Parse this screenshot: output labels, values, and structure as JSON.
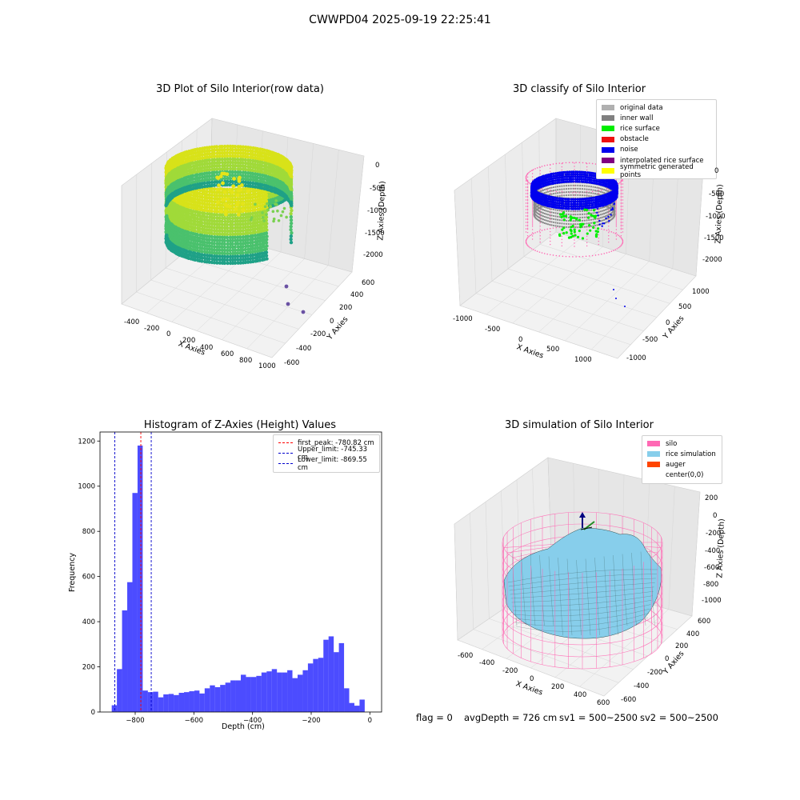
{
  "suptitle": "CWWPD04 2025-09-19 22:25:41",
  "panels": {
    "raw": {
      "title": "3D Plot of Silo Interior(row data)",
      "xlabel": "X Axies",
      "ylabel": "Y Axies",
      "zlabel": "Z Axies (Depth)",
      "xticks": [
        "-400",
        "-200",
        "0",
        "200",
        "400",
        "600",
        "800",
        "1000"
      ],
      "yticks": [
        "600",
        "400",
        "200",
        "0",
        "-200",
        "-400",
        "-600"
      ],
      "zticks": [
        "0",
        "-500",
        "-1000",
        "-1500",
        "-2000"
      ]
    },
    "classify": {
      "title": "3D classify of Silo Interior",
      "xlabel": "X Axies",
      "ylabel": "Y Axies",
      "zlabel": "Z Axies (Depth)",
      "xticks": [
        "-1000",
        "-500",
        "0",
        "500",
        "1000"
      ],
      "yticks": [
        "1000",
        "500",
        "0",
        "-500",
        "-1000"
      ],
      "zticks": [
        "0",
        "-500",
        "-1000",
        "-1500",
        "-2000"
      ],
      "legend": [
        {
          "label": "original data",
          "color": "#b0b0b0"
        },
        {
          "label": "inner wall",
          "color": "#808080"
        },
        {
          "label": "rice surface",
          "color": "#00ee00"
        },
        {
          "label": "obstacle",
          "color": "#ee1111"
        },
        {
          "label": "noise",
          "color": "#0000ee"
        },
        {
          "label": "interpolated rice surface",
          "color": "#800080"
        },
        {
          "label": "symmetric generated points",
          "color": "#ffff00"
        }
      ]
    },
    "simulation": {
      "title": "3D simulation of Silo Interior",
      "xlabel": "X Axies",
      "ylabel": "Y Axies",
      "zlabel": "Z Axies (Depth)",
      "xticks": [
        "-600",
        "-400",
        "-200",
        "0",
        "200",
        "400",
        "600"
      ],
      "yticks": [
        "600",
        "400",
        "200",
        "0",
        "-200",
        "-400",
        "-600"
      ],
      "zticks": [
        "200",
        "0",
        "-200",
        "-400",
        "-600",
        "-800",
        "-1000"
      ],
      "legend": [
        {
          "label": "silo",
          "color": "#ff69b4"
        },
        {
          "label": "rice simulation",
          "color": "#87ceeb"
        },
        {
          "label": "auger",
          "color": "#ff4500"
        },
        {
          "label": "center(0,0)",
          "color": "#ffffff"
        }
      ]
    }
  },
  "chart_data": {
    "type": "bar",
    "title": "Histogram of Z-Axies (Height) Values",
    "xlabel": "Depth (cm)",
    "ylabel": "Frequency",
    "xlim": [
      -920,
      40
    ],
    "ylim": [
      0,
      1240
    ],
    "xticks": [
      -800,
      -600,
      -400,
      -200,
      0
    ],
    "yticks": [
      0,
      200,
      400,
      600,
      800,
      1000,
      1200
    ],
    "bin_start": -880,
    "bin_width": 17.6,
    "values": [
      30,
      190,
      450,
      575,
      970,
      1180,
      95,
      88,
      90,
      65,
      78,
      80,
      75,
      85,
      88,
      92,
      95,
      82,
      105,
      118,
      110,
      120,
      130,
      140,
      140,
      165,
      155,
      155,
      160,
      175,
      180,
      190,
      175,
      175,
      185,
      150,
      165,
      185,
      215,
      235,
      240,
      320,
      335,
      265,
      305,
      105,
      40,
      28,
      55
    ],
    "bar_color": "#0000ff",
    "vlines": [
      {
        "label": "first_peak: -780.82 cm",
        "x": -780.82,
        "color": "#ff0000"
      },
      {
        "label": "Upper_limit: -745.33 cm",
        "x": -745.33,
        "color": "#0000cc"
      },
      {
        "label": "Lower_limit: -869.55 cm",
        "x": -869.55,
        "color": "#0000cc"
      }
    ],
    "legend_position": "top-right",
    "grid": false
  },
  "footer": {
    "flag": "flag = 0",
    "avg": "avgDepth = 726 cm",
    "sv1": "sv1 = 500~2500",
    "sv2": "sv2 = 500~2500"
  }
}
